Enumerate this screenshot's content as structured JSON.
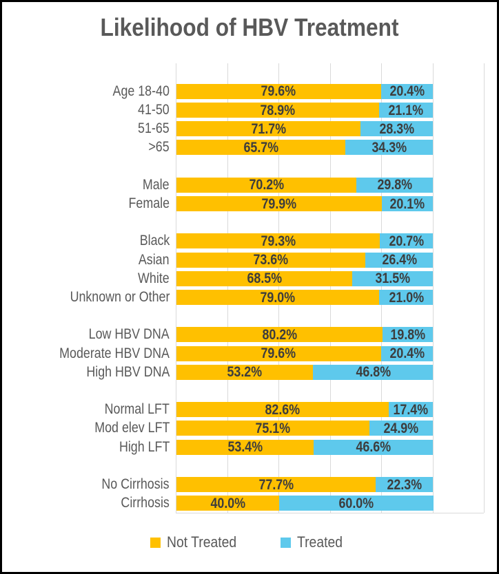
{
  "chart_data": {
    "type": "bar",
    "orientation": "horizontal",
    "stacked": true,
    "title": "Likelihood of HBV Treatment",
    "series_names": [
      "Not Treated",
      "Treated"
    ],
    "series_colors": [
      "#FFC000",
      "#5EC9EC"
    ],
    "title_color": "#595959",
    "gridline_color": "#D9D9D9",
    "value_format": "{:.1f}%",
    "xlim": [
      0,
      120
    ],
    "gridline_step": 20,
    "grid": true,
    "legend_position": "bottom",
    "groups": [
      {
        "rows": [
          {
            "category": "Age 18-40",
            "values": [
              79.6,
              20.4
            ]
          },
          {
            "category": "41-50",
            "values": [
              78.9,
              21.1
            ]
          },
          {
            "category": "51-65",
            "values": [
              71.7,
              28.3
            ]
          },
          {
            "category": ">65",
            "values": [
              65.7,
              34.3
            ]
          }
        ]
      },
      {
        "rows": [
          {
            "category": "Male",
            "values": [
              70.2,
              29.8
            ]
          },
          {
            "category": "Female",
            "values": [
              79.9,
              20.1
            ]
          }
        ]
      },
      {
        "rows": [
          {
            "category": "Black",
            "values": [
              79.3,
              20.7
            ]
          },
          {
            "category": "Asian",
            "values": [
              73.6,
              26.4
            ]
          },
          {
            "category": "White",
            "values": [
              68.5,
              31.5
            ]
          },
          {
            "category": "Unknown or Other",
            "values": [
              79.0,
              21.0
            ]
          }
        ]
      },
      {
        "rows": [
          {
            "category": "Low HBV DNA",
            "values": [
              80.2,
              19.8
            ]
          },
          {
            "category": "Moderate HBV DNA",
            "values": [
              79.6,
              20.4
            ]
          },
          {
            "category": "High HBV DNA",
            "values": [
              53.2,
              46.8
            ]
          }
        ]
      },
      {
        "rows": [
          {
            "category": "Normal LFT",
            "values": [
              82.6,
              17.4
            ]
          },
          {
            "category": "Mod elev LFT",
            "values": [
              75.1,
              24.9
            ]
          },
          {
            "category": "High LFT",
            "values": [
              53.4,
              46.6
            ]
          }
        ]
      },
      {
        "rows": [
          {
            "category": "No Cirrhosis",
            "values": [
              77.7,
              22.3
            ]
          },
          {
            "category": "Cirrhosis",
            "values": [
              40.0,
              60.0
            ]
          }
        ]
      }
    ]
  }
}
